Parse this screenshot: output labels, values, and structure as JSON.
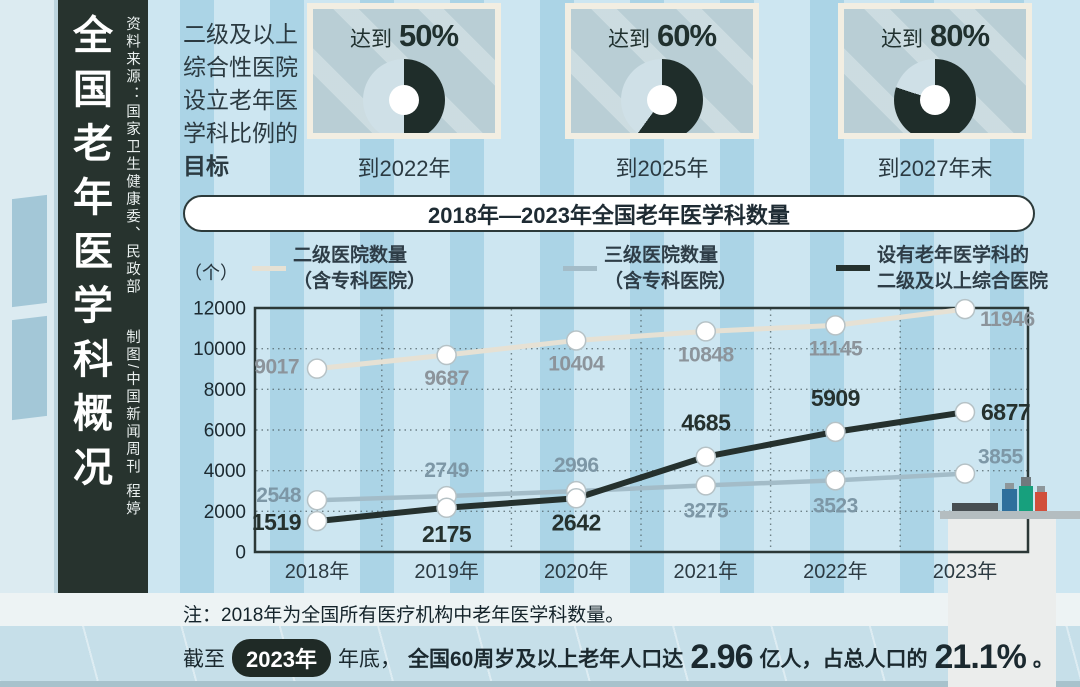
{
  "sidebar": {
    "title": "全国老年医学科概况",
    "source_label": "资料来源：国家卫生健康委、民政部",
    "credit_label": "制图/中国新闻周刊 程婷"
  },
  "targets": {
    "intro": {
      "lines": [
        "二级及以上",
        "综合性医院",
        "设立老年医",
        "学科比例的"
      ],
      "bold_line": "目标"
    },
    "colors": {
      "filled": "#1f2d2a",
      "rest": "#cfe0e7"
    },
    "cards": [
      {
        "reach_label": "达到",
        "percent_label": "50%",
        "deadline": "到2022年"
      },
      {
        "reach_label": "达到",
        "percent_label": "60%",
        "deadline": "到2025年"
      },
      {
        "reach_label": "达到",
        "percent_label": "80%",
        "deadline": "到2027年末"
      }
    ]
  },
  "chart": {
    "banner_title": "2018年—2023年全国老年医学科数量",
    "unit_label": "（个）",
    "legend": [
      {
        "line1": "二级医院数量",
        "line2": "（含专科医院）",
        "color": "#e6e1d4"
      },
      {
        "line1": "三级医院数量",
        "line2": "（含专科医院）",
        "color": "#a3bcc8"
      },
      {
        "line1": "设有老年医学科的",
        "line2": "二级及以上综合医院",
        "color": "#25312e"
      }
    ]
  },
  "chart_data": [
    {
      "type": "line",
      "title": "2018年—2023年全国老年医学科数量",
      "categories": [
        "2018年",
        "2019年",
        "2020年",
        "2021年",
        "2022年",
        "2023年"
      ],
      "series": [
        {
          "name": "二级医院数量（含专科医院）",
          "values": [
            9017,
            9687,
            10404,
            10848,
            11145,
            11946
          ],
          "color": "#e6e1d4",
          "label_color": "#8c949b"
        },
        {
          "name": "三级医院数量（含专科医院）",
          "values": [
            2548,
            2749,
            2996,
            3275,
            3523,
            3855
          ],
          "color": "#a3bcc8",
          "label_color": "#7d97a6"
        },
        {
          "name": "设有老年医学科的二级及以上综合医院",
          "values": [
            1519,
            2175,
            2642,
            4685,
            5909,
            6877
          ],
          "color": "#25312e",
          "label_color": "#25312e"
        }
      ],
      "xlabel": "",
      "ylabel": "（个）",
      "ylim": [
        0,
        12000
      ],
      "yticks": [
        0,
        2000,
        4000,
        6000,
        8000,
        10000,
        12000
      ],
      "grid": true,
      "legend_position": "top"
    },
    {
      "type": "pie",
      "title": "二级及以上综合性医院设立老年医学科比例的目标",
      "items": [
        {
          "label": "到2022年",
          "value": 50,
          "unit": "%"
        },
        {
          "label": "到2025年",
          "value": 60,
          "unit": "%"
        },
        {
          "label": "到2027年末",
          "value": 80,
          "unit": "%"
        }
      ]
    }
  ],
  "note": "注：2018年为全国所有医疗机构中老年医学科数量。",
  "footer": {
    "seg_prefix": "截至",
    "year_badge": "2023年",
    "seg_mid": "年底，",
    "seg_bold": "全国60周岁及以上老年人口达",
    "big_number": "2.96",
    "seg_after": "亿人，占总人口的",
    "big_percent": "21.1%",
    "seg_end": "。"
  }
}
